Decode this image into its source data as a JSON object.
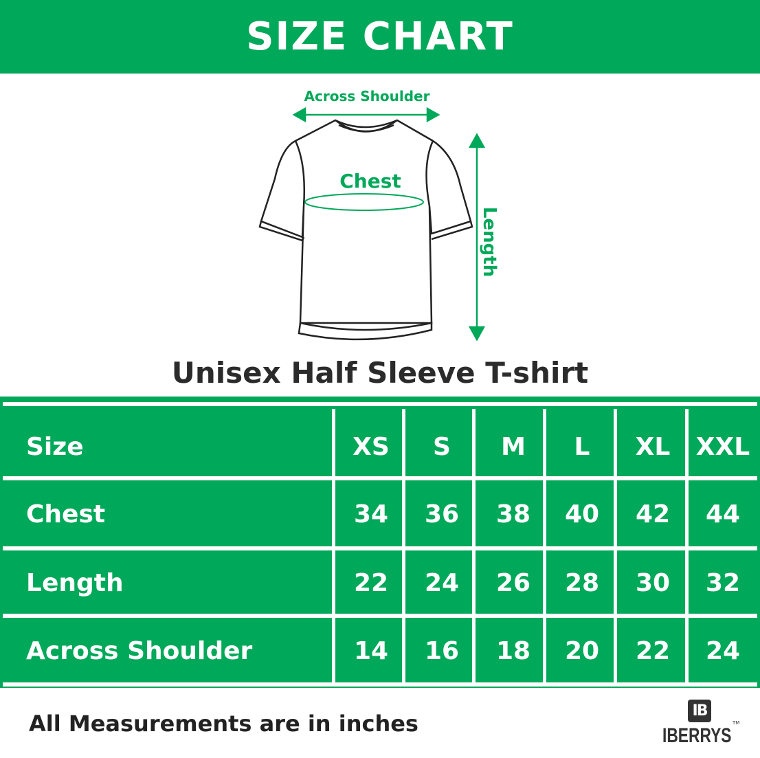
{
  "header": {
    "title": "SIZE CHART"
  },
  "diagram": {
    "across_shoulder_label": "Across Shoulder",
    "chest_label": "Chest",
    "length_label": "Length",
    "accent_color": "#00a859"
  },
  "product": {
    "name": "Unisex Half Sleeve T-shirt"
  },
  "table": {
    "columns": [
      "Size",
      "XS",
      "S",
      "M",
      "L",
      "XL",
      "XXL"
    ],
    "rows": [
      {
        "label": "Chest",
        "values": [
          "34",
          "36",
          "38",
          "40",
          "42",
          "44"
        ]
      },
      {
        "label": "Length",
        "values": [
          "22",
          "24",
          "26",
          "28",
          "30",
          "32"
        ]
      },
      {
        "label": "Across Shoulder",
        "values": [
          "14",
          "16",
          "18",
          "20",
          "22",
          "24"
        ]
      }
    ],
    "background_color": "#00a859"
  },
  "footer": {
    "note": "All Measurements are in inches"
  },
  "brand": {
    "monogram": "IB",
    "name": "IBERRYS",
    "tm": "TM"
  }
}
